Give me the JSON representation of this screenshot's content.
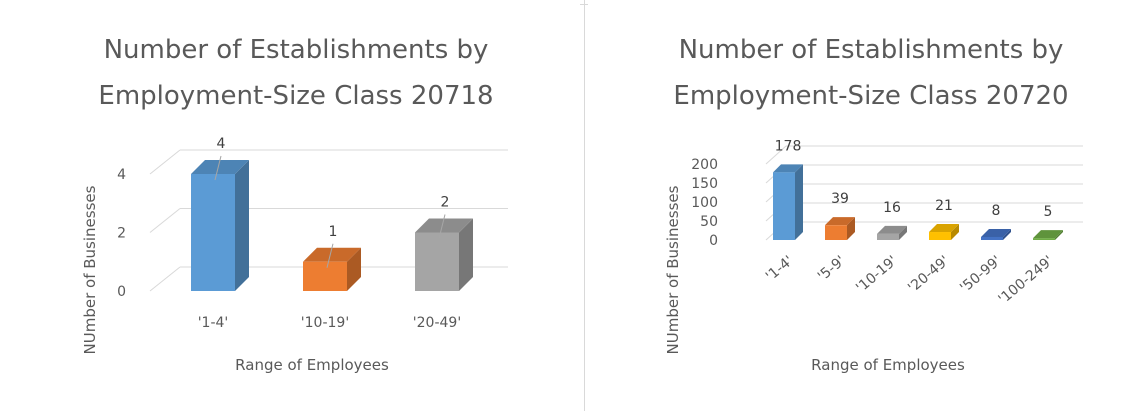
{
  "chart_data": [
    {
      "type": "bar",
      "title": "Number of Establishments by Employment-Size Class 20718",
      "title_lines": [
        "Number of Establishments by",
        "Employment-Size Class 20718"
      ],
      "xlabel": "Range of Employees",
      "ylabel": "NUmber of Businesses",
      "categories": [
        "'1-4'",
        "'10-19'",
        "'20-49'"
      ],
      "values": [
        4,
        1,
        2
      ],
      "colors": [
        "#5b9bd5",
        "#ed7d31",
        "#a5a5a5"
      ],
      "ylim": [
        0,
        4
      ],
      "yticks": [
        0,
        2,
        4
      ],
      "grid": true,
      "three_d": true
    },
    {
      "type": "bar",
      "title": "Number of Establishments by Employment-Size Class 20720",
      "title_lines": [
        "Number of Establishments by",
        "Employment-Size Class 20720"
      ],
      "xlabel": "Range of Employees",
      "ylabel": "NUmber of Businesses",
      "categories": [
        "'1-4'",
        "'5-9'",
        "'10-19'",
        "'20-49'",
        "'50-99'",
        "'100-249'"
      ],
      "values": [
        178,
        39,
        16,
        21,
        8,
        5
      ],
      "colors": [
        "#5b9bd5",
        "#ed7d31",
        "#a5a5a5",
        "#ffc000",
        "#4472c4",
        "#70ad47"
      ],
      "ylim": [
        0,
        200
      ],
      "yticks": [
        0,
        50,
        100,
        150,
        200
      ],
      "grid": true,
      "three_d": true
    }
  ]
}
